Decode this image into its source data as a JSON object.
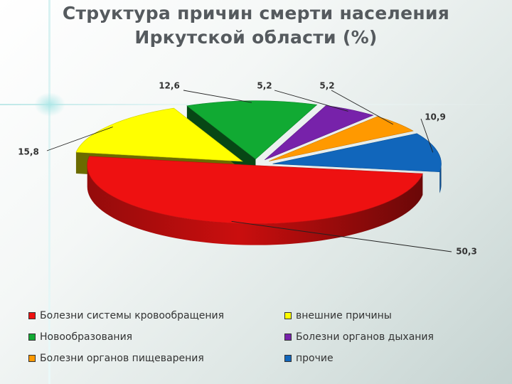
{
  "title": {
    "line1": "Структура причин смерти населения",
    "line2": "Иркутской области (%)"
  },
  "chart_data": {
    "type": "pie",
    "title": "Структура причин смерти населения Иркутской области (%)",
    "values": [
      50.3,
      15.8,
      12.6,
      5.2,
      5.2,
      10.9
    ],
    "labels": [
      "50,3",
      "15,8",
      "12,6",
      "5,2",
      "5,2",
      "10,9"
    ],
    "categories": [
      "Болезни системы кровообращения",
      "внешние причины",
      "Новообразования",
      "Болезни органов дыхания",
      "Болезни органов пищеварения",
      "прочие"
    ],
    "colors": [
      "#ee1111",
      "#ffff00",
      "#11aa33",
      "#7722aa",
      "#ff9900",
      "#1166bb"
    ],
    "legend_position": "bottom",
    "three_d": true
  },
  "legend": [
    {
      "label": "Болезни системы кровообращения",
      "color": "#ee1111"
    },
    {
      "label": "внешние причины",
      "color": "#ffff00"
    },
    {
      "label": "Новообразования",
      "color": "#11aa33"
    },
    {
      "label": "Болезни органов дыхания",
      "color": "#7722aa"
    },
    {
      "label": "Болезни органов пищеварения",
      "color": "#ff9900"
    },
    {
      "label": "прочие",
      "color": "#1166bb"
    }
  ]
}
